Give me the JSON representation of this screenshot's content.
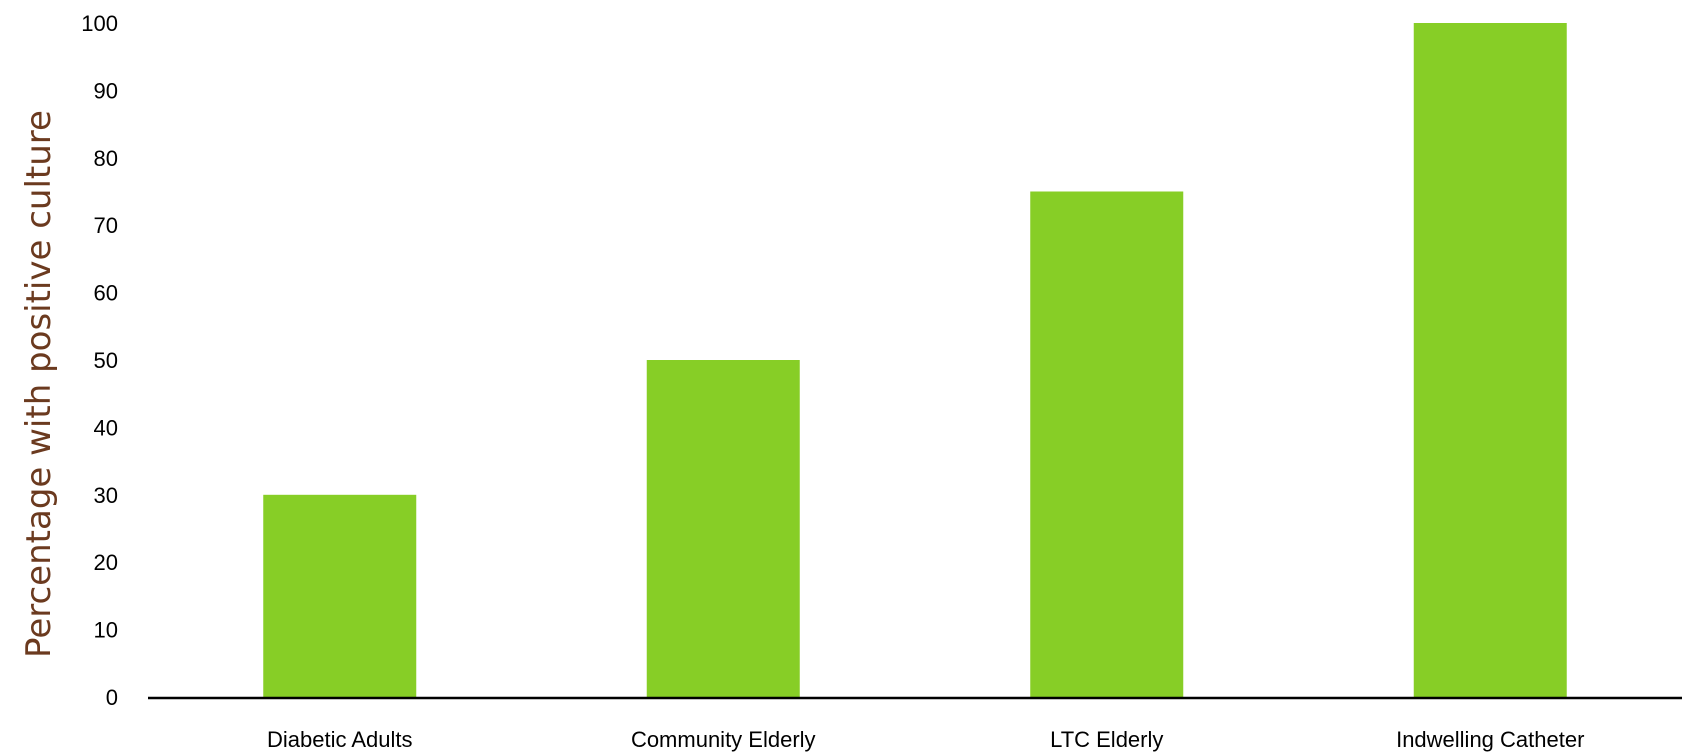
{
  "chart_data": {
    "type": "bar",
    "title": "",
    "xlabel": "",
    "ylabel": "Percentage with positive culture",
    "categories": [
      "Diabetic Adults",
      "Community Elderly",
      "LTC Elderly",
      "Indwelling Catheter"
    ],
    "values": [
      30,
      50,
      75,
      100
    ],
    "ylim": [
      0,
      100
    ],
    "yticks": [
      "0",
      "10",
      "20",
      "30",
      "40",
      "50",
      "60",
      "70",
      "80",
      "90",
      "100"
    ],
    "grid": false,
    "legend": "none",
    "bar_color": "#87CE26",
    "ylabel_color": "#6B3A1F",
    "axis_color": "#000000"
  }
}
